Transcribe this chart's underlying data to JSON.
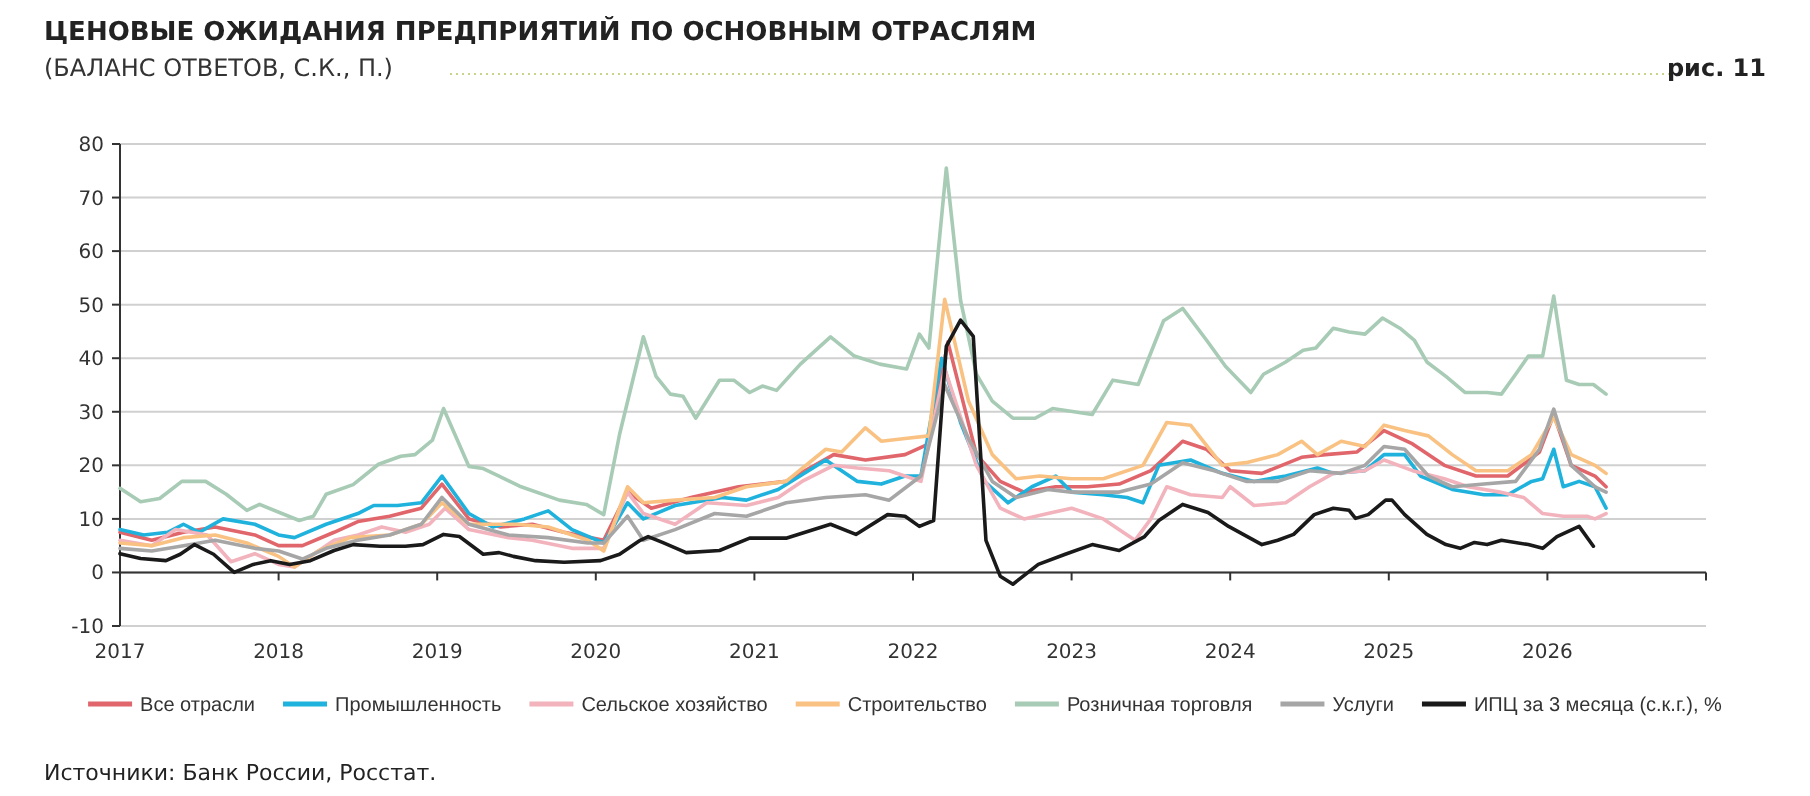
{
  "chart_data": {
    "type": "line",
    "title": "ЦЕНОВЫЕ ОЖИДАНИЯ ПРЕДПРИЯТИЙ ПО ОСНОВНЫМ ОТРАСЛЯМ",
    "subtitle": "(БАЛАНС ОТВЕТОВ, С.К., П.)",
    "annotations": [
      "рис. 11",
      "Источники: Банк России, Росстат."
    ],
    "xlim": [
      2017,
      2027
    ],
    "xticks": [
      2017,
      2018,
      2019,
      2020,
      2021,
      2022,
      2023,
      2024,
      2025,
      2026,
      {
        "value": 2027,
        "label": null
      }
    ],
    "ylim": [
      -10,
      80
    ],
    "yticks": [
      -10,
      0,
      10,
      20,
      30,
      40,
      50,
      60,
      70,
      80
    ],
    "grid": "y",
    "legend": "bottom",
    "line_style": "solid",
    "marker": "none",
    "series": [
      {
        "name": "Все отрасли",
        "color": "#e0666b",
        "x": [
          2017.0,
          2017.2,
          2017.4,
          2017.6,
          2017.85,
          2018.0,
          2018.15,
          2018.35,
          2018.5,
          2018.7,
          2018.9,
          2019.03,
          2019.2,
          2019.4,
          2019.6,
          2019.8,
          2020.05,
          2020.2,
          2020.35,
          2020.6,
          2020.9,
          2021.2,
          2021.5,
          2021.7,
          2021.95,
          2022.1,
          2022.22,
          2022.4,
          2022.55,
          2022.7,
          2022.9,
          2023.1,
          2023.3,
          2023.5,
          2023.7,
          2023.85,
          2024.0,
          2024.2,
          2024.45,
          2024.6,
          2024.8,
          2024.97,
          2025.15,
          2025.35,
          2025.55,
          2025.75,
          2025.95,
          2026.04,
          2026.15,
          2026.3,
          2026.37
        ],
        "values": [
          7.5,
          6,
          7.5,
          8.5,
          7,
          5,
          5,
          7.5,
          9.5,
          10.5,
          12,
          16.5,
          10,
          8.5,
          9,
          7.5,
          6,
          15,
          12,
          14,
          16,
          17,
          22,
          21,
          22,
          24,
          43,
          22,
          17,
          15,
          16,
          16,
          16.5,
          19,
          24.5,
          23,
          19,
          18.5,
          21.5,
          22,
          22.5,
          26.5,
          24,
          20,
          18,
          18,
          22.5,
          29.5,
          20,
          18,
          16
        ]
      },
      {
        "name": "Промышленность",
        "color": "#1fb2dc",
        "x": [
          2017.0,
          2017.15,
          2017.3,
          2017.4,
          2017.5,
          2017.65,
          2017.85,
          2018.0,
          2018.1,
          2018.3,
          2018.5,
          2018.6,
          2018.75,
          2018.9,
          2019.03,
          2019.2,
          2019.35,
          2019.55,
          2019.7,
          2019.85,
          2020.05,
          2020.2,
          2020.3,
          2020.5,
          2020.8,
          2020.95,
          2021.15,
          2021.45,
          2021.65,
          2021.8,
          2021.95,
          2022.05,
          2022.18,
          2022.3,
          2022.45,
          2022.6,
          2022.75,
          2022.9,
          2023.0,
          2023.2,
          2023.35,
          2023.45,
          2023.55,
          2023.75,
          2023.95,
          2024.15,
          2024.35,
          2024.55,
          2024.65,
          2024.85,
          2024.97,
          2025.1,
          2025.2,
          2025.4,
          2025.6,
          2025.75,
          2025.9,
          2025.97,
          2026.04,
          2026.1,
          2026.2,
          2026.3,
          2026.37
        ],
        "values": [
          8,
          7,
          7.5,
          9,
          7.5,
          10,
          9,
          7,
          6.5,
          9,
          11,
          12.5,
          12.5,
          13,
          18,
          11,
          8.5,
          10,
          11.5,
          8,
          5.5,
          13,
          10,
          12.5,
          14,
          13.5,
          15.5,
          21,
          17,
          16.5,
          18,
          18,
          40,
          28,
          17,
          13,
          16,
          18,
          15,
          14.5,
          14,
          13,
          20,
          21,
          18.5,
          17,
          18,
          19.5,
          18.5,
          19,
          22,
          22,
          18,
          15.5,
          14.5,
          14.5,
          17,
          17.5,
          23,
          16,
          17,
          16,
          12
        ]
      },
      {
        "name": "Сельское хозяйство",
        "color": "#f2b3bd",
        "x": [
          2017.0,
          2017.2,
          2017.35,
          2017.55,
          2017.7,
          2017.85,
          2018.0,
          2018.1,
          2018.2,
          2018.35,
          2018.5,
          2018.65,
          2018.8,
          2018.95,
          2019.05,
          2019.2,
          2019.45,
          2019.6,
          2019.85,
          2020.05,
          2020.2,
          2020.3,
          2020.5,
          2020.7,
          2020.95,
          2021.15,
          2021.3,
          2021.5,
          2021.65,
          2021.85,
          2022.05,
          2022.2,
          2022.4,
          2022.55,
          2022.7,
          2022.85,
          2023.0,
          2023.2,
          2023.4,
          2023.5,
          2023.6,
          2023.75,
          2023.95,
          2024.0,
          2024.15,
          2024.35,
          2024.5,
          2024.65,
          2024.85,
          2024.97,
          2025.15,
          2025.35,
          2025.5,
          2025.7,
          2025.85,
          2025.97,
          2026.1,
          2026.25,
          2026.3,
          2026.37
        ],
        "values": [
          6,
          5,
          8,
          7,
          2,
          3.5,
          1.5,
          1,
          3,
          6,
          7,
          8.5,
          7.5,
          9,
          12,
          8,
          6.5,
          6,
          4.5,
          4.5,
          15,
          11,
          9,
          13,
          12.5,
          14,
          17,
          20,
          19.5,
          19,
          17,
          38,
          20,
          12,
          10,
          11,
          12,
          10,
          6,
          10,
          16,
          14.5,
          14,
          16,
          12.5,
          13,
          16,
          18.5,
          19,
          21,
          19,
          17.5,
          16,
          15,
          14,
          11,
          10.5,
          10.5,
          10,
          11
        ]
      },
      {
        "name": "Строительство",
        "color": "#f9c283",
        "x": [
          2017.0,
          2017.2,
          2017.4,
          2017.6,
          2017.8,
          2018.0,
          2018.1,
          2018.25,
          2018.45,
          2018.7,
          2018.9,
          2019.03,
          2019.2,
          2019.5,
          2019.7,
          2019.95,
          2020.05,
          2020.2,
          2020.3,
          2020.5,
          2020.75,
          2020.95,
          2021.2,
          2021.45,
          2021.55,
          2021.7,
          2021.8,
          2021.95,
          2022.1,
          2022.2,
          2022.35,
          2022.5,
          2022.65,
          2022.8,
          2023.0,
          2023.2,
          2023.45,
          2023.6,
          2023.75,
          2023.95,
          2024.1,
          2024.3,
          2024.45,
          2024.55,
          2024.7,
          2024.85,
          2024.97,
          2025.1,
          2025.25,
          2025.4,
          2025.55,
          2025.75,
          2025.9,
          2026.04,
          2026.15,
          2026.3,
          2026.37
        ],
        "values": [
          5.5,
          5,
          6.5,
          7,
          5.5,
          3,
          1,
          4,
          6.5,
          7,
          9,
          13,
          9,
          9,
          8.5,
          6,
          4,
          16,
          13,
          13.5,
          14,
          16,
          17,
          23,
          22.5,
          27,
          24.5,
          25,
          25.5,
          51,
          32,
          22,
          17.5,
          18,
          17.5,
          17.5,
          20,
          28,
          27.5,
          20,
          20.5,
          22,
          24.5,
          22,
          24.5,
          23.5,
          27.5,
          26.5,
          25.5,
          22,
          19,
          19,
          22,
          29,
          22,
          20,
          18.5
        ]
      },
      {
        "name": "Розничная торговля",
        "color": "#a8cbb5",
        "x": [
          2017.0,
          2017.13,
          2017.25,
          2017.39,
          2017.54,
          2017.67,
          2017.8,
          2017.88,
          2018.13,
          2018.22,
          2018.3,
          2018.47,
          2018.63,
          2018.77,
          2018.86,
          2018.97,
          2019.04,
          2019.2,
          2019.29,
          2019.39,
          2019.52,
          2019.77,
          2019.94,
          2020.05,
          2020.15,
          2020.3,
          2020.38,
          2020.47,
          2020.55,
          2020.63,
          2020.78,
          2020.87,
          2020.97,
          2021.05,
          2021.14,
          2021.29,
          2021.48,
          2021.63,
          2021.79,
          2021.96,
          2022.04,
          2022.1,
          2022.21,
          2022.3,
          2022.4,
          2022.5,
          2022.63,
          2022.77,
          2022.88,
          2023.13,
          2023.26,
          2023.42,
          2023.58,
          2023.7,
          2023.85,
          2023.97,
          2024.13,
          2024.21,
          2024.35,
          2024.46,
          2024.54,
          2024.65,
          2024.75,
          2024.85,
          2024.96,
          2025.07,
          2025.16,
          2025.24,
          2025.36,
          2025.48,
          2025.62,
          2025.71,
          2025.8,
          2025.88,
          2025.97,
          2026.04,
          2026.12,
          2026.2,
          2026.29,
          2026.37
        ],
        "values": [
          15.7,
          13.2,
          13.8,
          17,
          17,
          14.6,
          11.6,
          12.7,
          9.7,
          10.5,
          14.6,
          16.4,
          20.2,
          21.7,
          22,
          24.7,
          30.6,
          19.8,
          19.4,
          18,
          16.1,
          13.5,
          12.7,
          10.8,
          25.8,
          44,
          36.6,
          33.3,
          32.9,
          28.8,
          35.9,
          35.9,
          33.6,
          34.8,
          34,
          38.9,
          44,
          40.4,
          38.9,
          38,
          44.5,
          41.9,
          75.5,
          50.8,
          37,
          32,
          28.8,
          28.8,
          30.6,
          29.5,
          35.9,
          35.1,
          47,
          49.3,
          43.4,
          38.5,
          33.6,
          37,
          39.3,
          41.5,
          41.9,
          45.6,
          44.9,
          44.5,
          47.5,
          45.6,
          43.4,
          39.3,
          36.6,
          33.6,
          33.6,
          33.3,
          37,
          40.4,
          40.4,
          51.6,
          35.9,
          35.1,
          35.1,
          33.3
        ]
      },
      {
        "name": "Услуги",
        "color": "#a6a6a6",
        "x": [
          2017.0,
          2017.2,
          2017.4,
          2017.6,
          2017.85,
          2018.0,
          2018.15,
          2018.3,
          2018.5,
          2018.7,
          2018.9,
          2019.03,
          2019.2,
          2019.45,
          2019.7,
          2019.95,
          2020.05,
          2020.2,
          2020.3,
          2020.5,
          2020.75,
          2020.95,
          2021.2,
          2021.45,
          2021.7,
          2021.85,
          2022.05,
          2022.2,
          2022.35,
          2022.5,
          2022.65,
          2022.85,
          2023.0,
          2023.3,
          2023.5,
          2023.7,
          2023.9,
          2024.1,
          2024.3,
          2024.5,
          2024.7,
          2024.85,
          2024.97,
          2025.1,
          2025.25,
          2025.4,
          2025.6,
          2025.8,
          2025.95,
          2026.04,
          2026.15,
          2026.3,
          2026.37
        ],
        "values": [
          4.5,
          4,
          5,
          6,
          4.5,
          4,
          2.5,
          4.5,
          6,
          7,
          9,
          14,
          9,
          7,
          6.5,
          5.5,
          5.5,
          10.5,
          6,
          8,
          11,
          10.5,
          13,
          14,
          14.5,
          13.5,
          18,
          35,
          25,
          17,
          14,
          15.5,
          15,
          15,
          16.5,
          20.5,
          19,
          17,
          17,
          19,
          18.5,
          20,
          23.5,
          23,
          18,
          16,
          16.5,
          17,
          23,
          30.5,
          20,
          16,
          15
        ]
      },
      {
        "name": "ИПЦ за 3 месяца (с.к.г.), %",
        "color": "#1a1a1a",
        "x": [
          2017.0,
          2017.13,
          2017.29,
          2017.38,
          2017.47,
          2017.59,
          2017.72,
          2017.84,
          2017.95,
          2018.07,
          2018.2,
          2018.35,
          2018.47,
          2018.64,
          2018.8,
          2018.91,
          2019.04,
          2019.14,
          2019.29,
          2019.39,
          2019.48,
          2019.62,
          2019.8,
          2020.03,
          2020.15,
          2020.28,
          2020.33,
          2020.42,
          2020.57,
          2020.78,
          2020.97,
          2021.2,
          2021.48,
          2021.64,
          2021.84,
          2021.95,
          2022.04,
          2022.13,
          2022.21,
          2022.3,
          2022.38,
          2022.46,
          2022.55,
          2022.63,
          2022.79,
          2022.96,
          2023.13,
          2023.3,
          2023.46,
          2023.55,
          2023.7,
          2023.86,
          2023.99,
          2024.2,
          2024.3,
          2024.4,
          2024.53,
          2024.65,
          2024.75,
          2024.79,
          2024.87,
          2024.98,
          2025.02,
          2025.1,
          2025.24,
          2025.36,
          2025.45,
          2025.54,
          2025.62,
          2025.71,
          2025.88,
          2025.97,
          2026.06,
          2026.2,
          2026.29
        ],
        "values": [
          3.5,
          2.6,
          2.2,
          3.4,
          5.2,
          3.4,
          0,
          1.5,
          2.2,
          1.5,
          2.2,
          4.1,
          5.2,
          4.9,
          4.9,
          5.2,
          7.1,
          6.7,
          3.4,
          3.7,
          3,
          2.2,
          1.9,
          2.2,
          3.4,
          6,
          6.7,
          5.6,
          3.7,
          4.1,
          6.4,
          6.4,
          9,
          7.1,
          10.8,
          10.5,
          8.6,
          9.7,
          42.2,
          47.1,
          44.1,
          6,
          -0.7,
          -2.2,
          1.5,
          3.4,
          5.2,
          4.1,
          6.7,
          9.7,
          12.7,
          11.2,
          8.6,
          5.2,
          6,
          7.1,
          10.8,
          12,
          11.6,
          10.1,
          10.8,
          13.5,
          13.5,
          10.8,
          7.1,
          5.2,
          4.5,
          5.6,
          5.2,
          6,
          5.2,
          4.5,
          6.7,
          8.6,
          4.9
        ]
      }
    ]
  }
}
